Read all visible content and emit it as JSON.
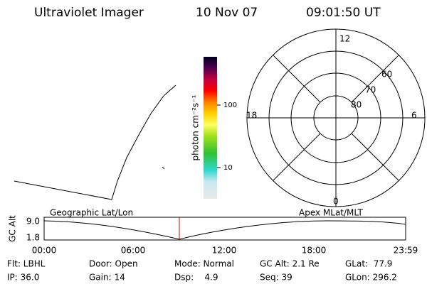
{
  "header": {
    "title": "Ultraviolet Imager",
    "date": "10 Nov 07",
    "time": "09:01:50 UT"
  },
  "colorbar": {
    "label": "photon cm⁻²s⁻¹",
    "ticks": [
      "100",
      "10"
    ]
  },
  "polar": {
    "mlt_labels": [
      "12",
      "18",
      "6",
      "0"
    ],
    "lat_labels": [
      "60",
      "70",
      "80"
    ]
  },
  "altitude_plot": {
    "left_label": "Geographic Lat/Lon",
    "right_label": "Apex MLat/MLT",
    "y_label": "GC Alt",
    "y_ticks": [
      "9.0",
      "1.8"
    ],
    "x_ticks": [
      "00:00",
      "06:00",
      "12:00",
      "18:00",
      "23:59"
    ]
  },
  "info": {
    "row1": [
      "Flt: LBHL",
      "Door: Open",
      "Mode: Normal",
      "GC Alt: 2.1 Re",
      "GLat:  77.9"
    ],
    "row2": [
      "IP: 36.0",
      "Gain: 14",
      "Dsp:    4.9",
      "Seq: 39",
      "GLon: 296.2"
    ]
  }
}
